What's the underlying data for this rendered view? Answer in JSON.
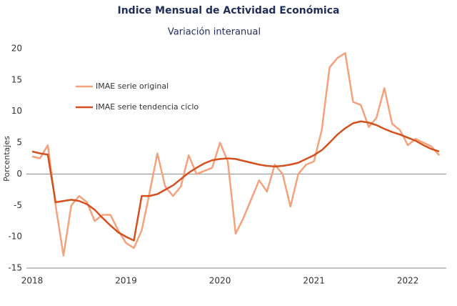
{
  "chart_data": {
    "type": "line",
    "title": "Indice Mensual de  Actividad Económica",
    "subtitle": "Variación interanual",
    "y_label": "Porcentajes",
    "categories": [
      "2018",
      null,
      null,
      null,
      null,
      null,
      null,
      null,
      null,
      null,
      null,
      null,
      "2019",
      null,
      null,
      null,
      null,
      null,
      null,
      null,
      null,
      null,
      null,
      null,
      "2020",
      null,
      null,
      null,
      null,
      null,
      null,
      null,
      null,
      null,
      null,
      null,
      "2021",
      null,
      null,
      null,
      null,
      null,
      null,
      null,
      null,
      null,
      null,
      null,
      "2022",
      null,
      null,
      null,
      null
    ],
    "series": [
      {
        "name": "IMAE serie original",
        "color": "#f5a27c",
        "values": [
          2.8,
          2.5,
          4.6,
          -5,
          -13,
          -5,
          -3.5,
          -4.5,
          -7.5,
          -6.5,
          -6.5,
          -9,
          -11,
          -11.8,
          -9,
          -3,
          3.3,
          -2,
          -3.5,
          -2,
          3,
          0,
          0.5,
          1,
          5,
          2,
          -9.5,
          -7,
          -4,
          -1,
          -2.8,
          1.5,
          0,
          -5.2,
          0,
          1.5,
          2,
          7,
          17,
          18.5,
          19.3,
          11.5,
          11,
          7.5,
          9,
          13.7,
          8,
          7,
          4.6,
          5.6,
          5,
          4.4,
          3
        ]
      },
      {
        "name": "IMAE serie  tendencia ciclo",
        "color": "#d4501f",
        "values": [
          3.6,
          3.3,
          3.1,
          -4.5,
          -4.3,
          -4.1,
          -4.3,
          -4.8,
          -5.7,
          -7,
          -8.2,
          -9.3,
          -10,
          -10.6,
          -3.5,
          -3.5,
          -3.2,
          -2.5,
          -1.8,
          -0.8,
          0.2,
          1,
          1.7,
          2.2,
          2.4,
          2.5,
          2.4,
          2.1,
          1.8,
          1.5,
          1.3,
          1.2,
          1.3,
          1.5,
          1.8,
          2.4,
          3,
          3.8,
          5,
          6.3,
          7.3,
          8.1,
          8.4,
          8.2,
          7.8,
          7.2,
          6.7,
          6.3,
          5.8,
          5.3,
          4.6,
          4,
          3.6
        ]
      }
    ],
    "ylim": [
      -15,
      20
    ],
    "yticks": [
      20,
      15,
      10,
      5,
      0,
      -5,
      -10,
      -15
    ],
    "grid": false,
    "legend": "upper-left"
  }
}
